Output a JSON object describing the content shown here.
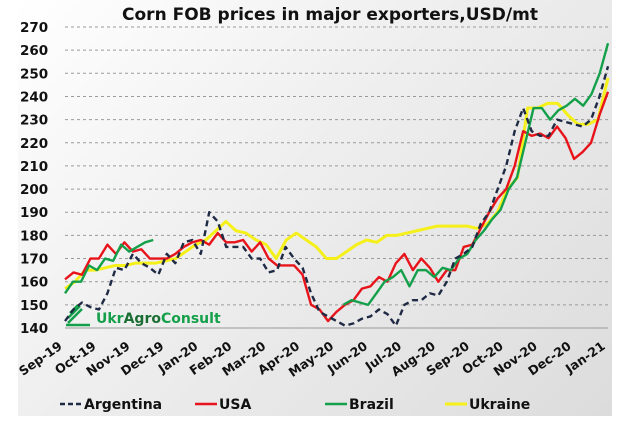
{
  "chart_data": {
    "type": "line",
    "title": "Corn FOB prices in major exporters,USD/mt",
    "xlabel": "",
    "ylabel": "",
    "ylim": [
      140,
      270
    ],
    "yticks": [
      "270",
      "260",
      "250",
      "240",
      "230",
      "220",
      "210",
      "200",
      "190",
      "180",
      "170",
      "160",
      "150",
      "140"
    ],
    "categories": [
      "Sep-19",
      "Oct-19",
      "Nov-19",
      "Dec-19",
      "Jan-20",
      "Feb-20",
      "Mar-20",
      "Apr-20",
      "May-20",
      "Jun-20",
      "Jul-20",
      "Aug-20",
      "Sep-20",
      "Oct-20",
      "Nov-20",
      "Dec-20",
      "Jan-21"
    ],
    "x_unit": "months since Sep-19",
    "grid": true,
    "legend_position": "bottom",
    "watermark": "UkrAgroConsult",
    "series": [
      {
        "name": "Argentina",
        "color": "#1f2a44",
        "dashed": true,
        "segments": [
          {
            "x_start": 0,
            "x_end": 16,
            "values": [
              143,
              148,
              151,
              149,
              148,
              155,
              166,
              165,
              172,
              168,
              166,
              163,
              172,
              168,
              177,
              178,
              172,
              190,
              186,
              175,
              175,
              175,
              170,
              170,
              164,
              165,
              175,
              170,
              166,
              155,
              147,
              145,
              143,
              141,
              142,
              144,
              145,
              148,
              146,
              141,
              150,
              152,
              152,
              155,
              154,
              160,
              170,
              172,
              175,
              185,
              190,
              200,
              210,
              225,
              235,
              225,
              223,
              223,
              230,
              229,
              228,
              227,
              230,
              240,
              253
            ]
          }
        ]
      },
      {
        "name": "USA",
        "color": "#e8141b",
        "dashed": false,
        "segments": [
          {
            "x_start": 0,
            "x_end": 16,
            "values": [
              161,
              164,
              163,
              170,
              170,
              176,
              172,
              177,
              173,
              174,
              170,
              170,
              170,
              172,
              175,
              177,
              178,
              176,
              181,
              177,
              177,
              178,
              173,
              177,
              170,
              167,
              167,
              167,
              163,
              150,
              148,
              143,
              147,
              150,
              152,
              157,
              158,
              162,
              160,
              168,
              172,
              165,
              170,
              166,
              160,
              165,
              165,
              175,
              176,
              183,
              190,
              196,
              200,
              210,
              225,
              223,
              224,
              222,
              227,
              222,
              213,
              216,
              220,
              232,
              242
            ]
          }
        ]
      },
      {
        "name": "Brazil",
        "color": "#14a04a",
        "dashed": false,
        "segments": [
          {
            "x_start": 0,
            "x_end": 2.6,
            "values": [
              155,
              160,
              160,
              167,
              165,
              170,
              169,
              176,
              173,
              175,
              177,
              178
            ]
          },
          {
            "x_start": 8.2,
            "x_end": 16,
            "values": [
              150,
              152,
              151,
              150,
              155,
              160,
              162,
              165,
              158,
              165,
              165,
              162,
              166,
              165,
              170,
              172,
              178,
              182,
              187,
              191,
              200,
              205,
              220,
              235,
              235,
              230,
              234,
              236,
              239,
              236,
              241,
              250,
              263
            ]
          }
        ]
      },
      {
        "name": "Ukraine",
        "color": "#f5f01a",
        "dashed": false,
        "segments": [
          {
            "x_start": 0,
            "x_end": 16,
            "values": [
              157,
              160,
              165,
              165,
              166,
              167,
              167,
              168,
              168,
              168,
              169,
              170,
              173,
              176,
              178,
              182,
              186,
              182,
              181,
              178,
              176,
              170,
              178,
              181,
              178,
              175,
              170,
              170,
              173,
              176,
              178,
              177,
              180,
              180,
              181,
              182,
              183,
              184,
              184,
              184,
              184,
              183,
              185,
              190,
              200,
              205,
              235,
              235,
              237,
              237,
              232,
              228,
              228,
              230,
              248
            ]
          }
        ]
      }
    ]
  }
}
